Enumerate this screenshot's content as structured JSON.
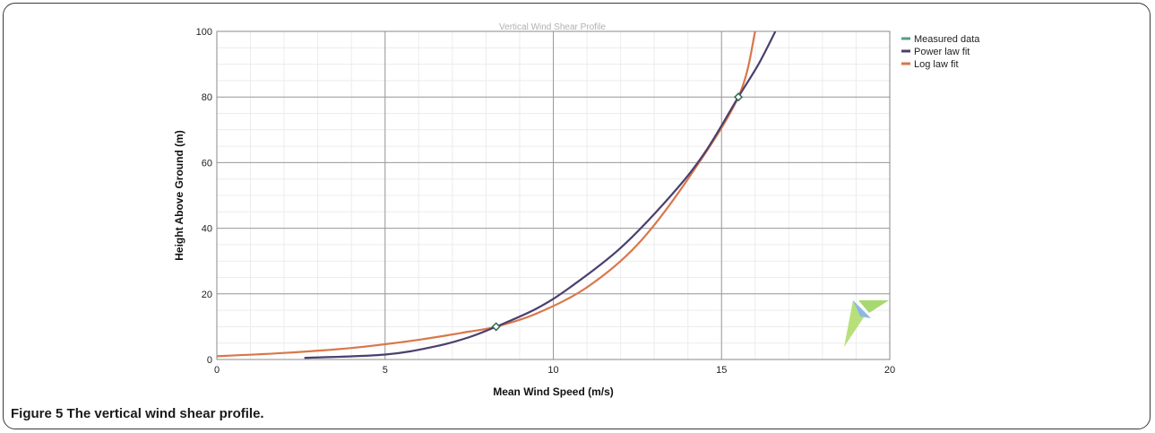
{
  "caption": {
    "label": "Figure 5",
    "text": "The vertical wind shear profile."
  },
  "chart_data": {
    "type": "line",
    "title": "Vertical Wind Shear Profile",
    "xlabel": "Mean Wind Speed (m/s)",
    "ylabel": "Height Above Ground (m)",
    "xlim": [
      0,
      20
    ],
    "ylim": [
      0,
      100
    ],
    "xticks": [
      0,
      5,
      10,
      15,
      20
    ],
    "yticks": [
      0,
      20,
      40,
      60,
      80,
      100
    ],
    "grid": true,
    "legend_position": "right",
    "series": [
      {
        "name": "Measured data",
        "color": "#5a9e7e",
        "marker": "diamond",
        "x": [
          8.3,
          15.5
        ],
        "y": [
          10,
          80
        ]
      },
      {
        "name": "Power law fit",
        "color": "#4b3f6e",
        "x": [
          2.6,
          5.0,
          6.5,
          7.5,
          8.3,
          9.5,
          10.5,
          12.0,
          13.5,
          14.5,
          15.5,
          16.1,
          16.6
        ],
        "y": [
          0.5,
          1.5,
          4.0,
          6.8,
          10,
          15.5,
          22,
          34,
          50,
          63,
          80,
          90,
          100
        ]
      },
      {
        "name": "Log law fit",
        "color": "#d9774a",
        "x": [
          0.0,
          2.0,
          4.0,
          6.0,
          7.5,
          8.3,
          9.5,
          11.0,
          12.5,
          14.0,
          15.5,
          16.0
        ],
        "y": [
          1,
          2,
          3.5,
          6.0,
          8.5,
          10,
          14,
          22,
          35,
          55,
          80,
          100
        ]
      }
    ]
  }
}
